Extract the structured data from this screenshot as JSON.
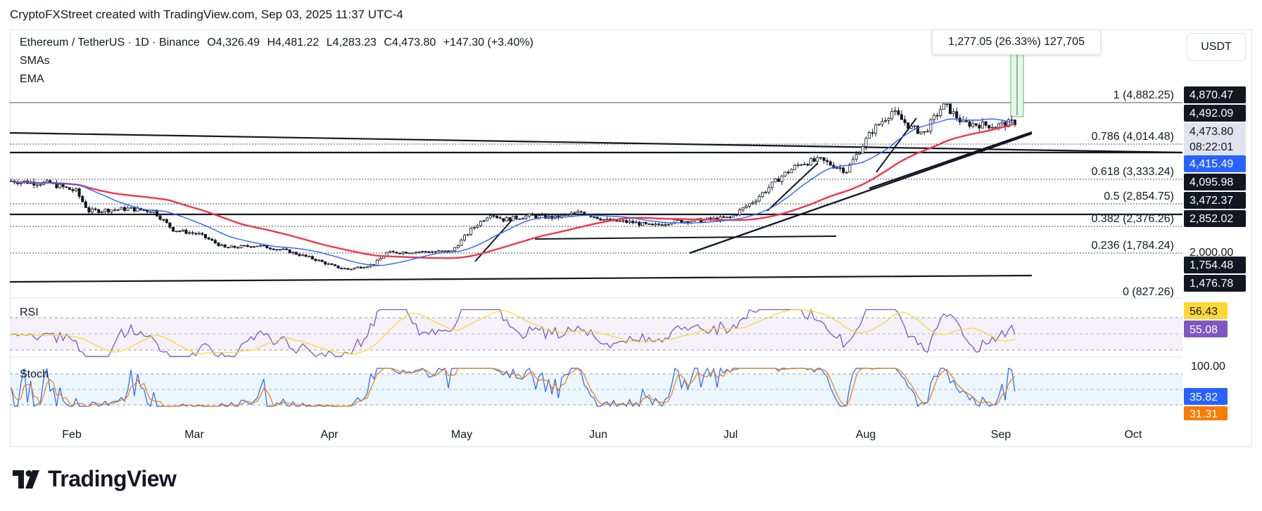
{
  "header": {
    "attribution": "CryptoFXStreet created with TradingView.com, Sep 03, 2025 11:37 UTC-4"
  },
  "legend": {
    "symbol": "Ethereum / TetherUS · 1D · Binance",
    "open": "O4,326.49",
    "high": "H4,481.22",
    "low": "L4,283.23",
    "close": "C4,473.80",
    "change": "+147.30 (+3.40%)",
    "smas": "SMAs",
    "ema": "EMA"
  },
  "currency_button": "USDT",
  "measure_tooltip": "1,277.05 (26.33%) 127,705",
  "panes": {
    "rsi_label": "RSI",
    "stoch_label": "Stoch"
  },
  "logo_text": "TradingView",
  "colors": {
    "up_candle": "#ffffff",
    "down_candle": "#131722",
    "sma_short": "#2962ff",
    "sma_long": "#f23645",
    "rsi_line": "#7e57c2",
    "rsi_ma": "#fdd835",
    "stoch_k": "#2962ff",
    "stoch_d": "#f57c00",
    "price_tag": "#131722",
    "sma_tag": "#2962ff",
    "current_tag": "#e0e3eb"
  },
  "chart_data": {
    "type": "candlestick",
    "x_ticks": [
      "Feb",
      "Mar",
      "Apr",
      "May",
      "Jun",
      "Jul",
      "Aug",
      "Sep",
      "Oct"
    ],
    "fib_levels": [
      {
        "label": "1 (4,882.25)",
        "value": 4882.25
      },
      {
        "label": "0.786 (4,014.48)",
        "value": 4014.48
      },
      {
        "label": "0.618 (3,333.24)",
        "value": 3333.24
      },
      {
        "label": "0.5 (2,854.75)",
        "value": 2854.75
      },
      {
        "label": "0.382 (2,376.26)",
        "value": 2376.26
      },
      {
        "label": "0.236 (1,784.24)",
        "value": 1784.24
      },
      {
        "label": "0 (827.26)",
        "value": 827.26
      }
    ],
    "price_axis_tags": [
      {
        "label": "4,870.47",
        "value": 4870.47,
        "kind": "dark"
      },
      {
        "label": "4,492.09",
        "value": 4492.09,
        "kind": "dark"
      },
      {
        "label": "4,473.80",
        "value": 4473.8,
        "kind": "current"
      },
      {
        "label": "08:22:01",
        "value": 0,
        "kind": "countdown"
      },
      {
        "label": "4,415.49",
        "value": 4415.49,
        "kind": "blue"
      },
      {
        "label": "4,095.98",
        "value": 4095.98,
        "kind": "dark"
      },
      {
        "label": "3,472.37",
        "value": 3472.37,
        "kind": "dark"
      },
      {
        "label": "2,852.02",
        "value": 2852.02,
        "kind": "dark"
      },
      {
        "label": "2,000.00",
        "value": 2000.0,
        "kind": "plain"
      },
      {
        "label": "1,754.48",
        "value": 1754.48,
        "kind": "dark"
      },
      {
        "label": "1,476.78",
        "value": 1476.78,
        "kind": "dark"
      }
    ],
    "rsi": {
      "value": "55.08",
      "ma": "56.43"
    },
    "stoch": {
      "k": "35.82",
      "d": "31.31",
      "top_label": "100.00"
    },
    "trend_notes": "Jan-Apr downtrend from ~3,300 to ~1,400; May rally to ~2,700; Jun consolidation; Jul-Aug rally to ~4,900; Aug-Sep triangle consolidation near 4,300-4,500"
  }
}
